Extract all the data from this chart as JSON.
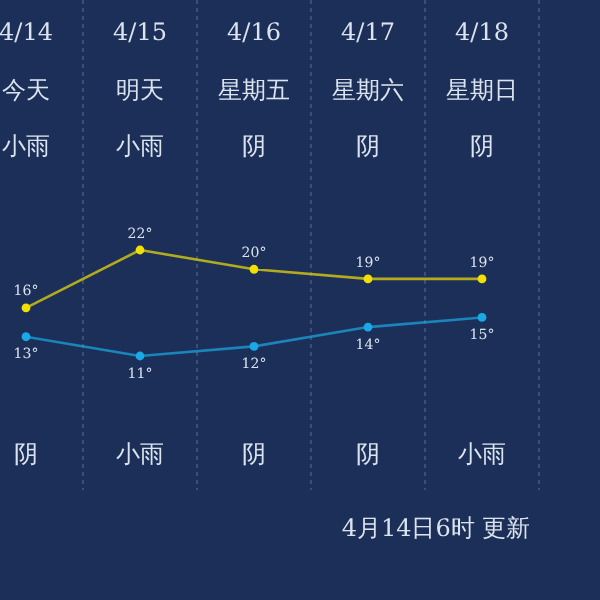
{
  "chart_data": {
    "type": "line",
    "categories": [
      "4/14",
      "4/15",
      "4/16",
      "4/17",
      "4/18"
    ],
    "series": [
      {
        "color": "#f2e005",
        "values": [
          16,
          22,
          20,
          19,
          19
        ],
        "value_labels": [
          "16°",
          "22°",
          "20°",
          "19°",
          "19°"
        ]
      },
      {
        "color": "#1aa9e6",
        "values": [
          13,
          11,
          12,
          14,
          15
        ],
        "value_labels": [
          "13°",
          "11°",
          "12°",
          "14°",
          "15°"
        ]
      }
    ],
    "grid": "x",
    "marker": "circle",
    "line_style": "solid",
    "tick_labels": "x",
    "annotations": [
      "今天",
      "明天",
      "星期五",
      "星期六",
      "星期日",
      "小雨",
      "小雨",
      "阴",
      "阴",
      "阴",
      "阴",
      "小雨",
      "阴",
      "阴",
      "小雨",
      "4月14日6时 更新"
    ]
  }
}
